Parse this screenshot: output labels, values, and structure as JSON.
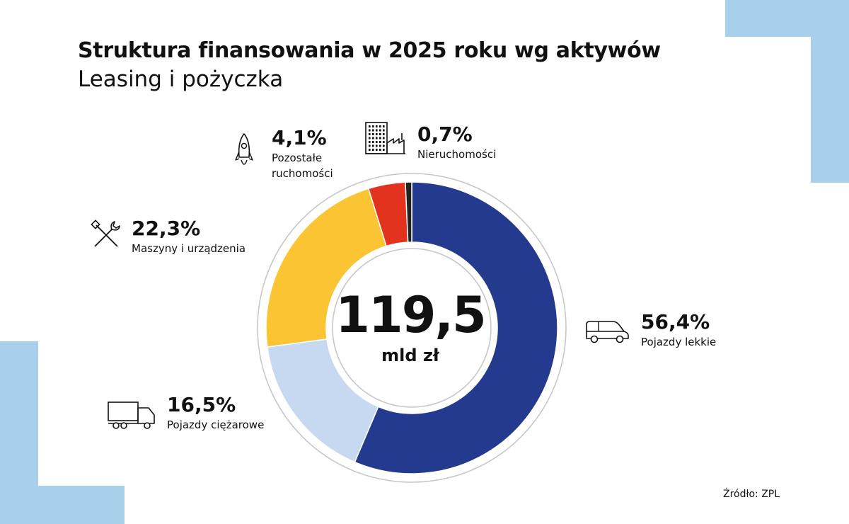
{
  "title": "Struktura finansowania w 2025 roku wg aktywów",
  "subtitle": "Leasing i pożyczka",
  "center": {
    "value": "119,5",
    "unit": "mld zł"
  },
  "chart_data": {
    "type": "pie",
    "title": "Struktura finansowania w 2025 roku wg aktywów",
    "subtitle": "Leasing i pożyczka",
    "categories": [
      "Pojazdy lekkie",
      "Pojazdy ciężarowe",
      "Maszyny i urządzenia",
      "Pozostałe ruchomości",
      "Nieruchomości"
    ],
    "values": [
      56.4,
      16.5,
      22.3,
      4.1,
      0.7
    ],
    "value_labels": [
      "56,4%",
      "16,5%",
      "22,3%",
      "4,1%",
      "0,7%"
    ],
    "colors": [
      "#233a8f",
      "#c6d9f1",
      "#fbc433",
      "#e3321d",
      "#222222"
    ],
    "total_label": "119,5",
    "total_unit": "mld zł",
    "legend": "none"
  },
  "labels": [
    {
      "pct": "56,4%",
      "name": "Pojazdy lekkie",
      "icon": "car-icon"
    },
    {
      "pct": "16,5%",
      "name": "Pojazdy ciężarowe",
      "icon": "truck-icon"
    },
    {
      "pct": "22,3%",
      "name": "Maszyny i urządzenia",
      "icon": "tools-icon"
    },
    {
      "pct": "4,1%",
      "name": "Pozostałe ruchomości",
      "icon": "rocket-icon"
    },
    {
      "pct": "0,7%",
      "name": "Nieruchomości",
      "icon": "buildings-icon"
    }
  ],
  "source": "Źródło: ZPL"
}
